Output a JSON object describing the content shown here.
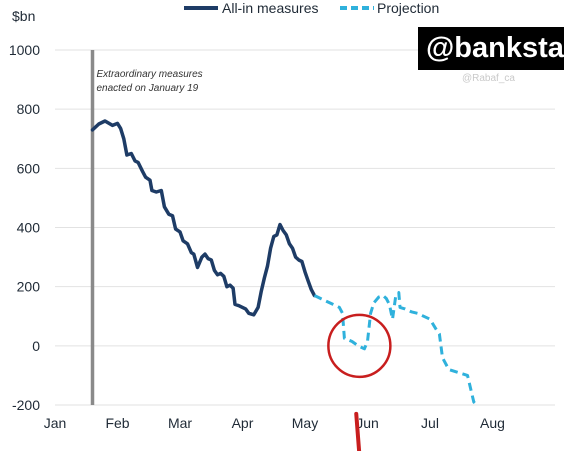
{
  "watermark": "@banksta",
  "faint_text": [
    "@Rabaf_ca"
  ],
  "chart_data": {
    "type": "line",
    "title": "",
    "ylabel": "$bn",
    "xlabel": "",
    "ylim": [
      -200,
      1000
    ],
    "yticks": [
      -200,
      0,
      200,
      400,
      600,
      800,
      1000
    ],
    "x_months": [
      "Jan",
      "Feb",
      "Mar",
      "Apr",
      "May",
      "Jun",
      "Jul",
      "Aug"
    ],
    "grid": "horizontal",
    "legend_position": "top-center",
    "annotation": {
      "line1": "Extraordinary measures",
      "line2": "enacted on January 19",
      "x_month": 0.6
    },
    "series": [
      {
        "name": "All-in measures",
        "style": "solid",
        "color": "#1e3c66",
        "points": [
          [
            0.6,
            730
          ],
          [
            0.7,
            750
          ],
          [
            0.8,
            760
          ],
          [
            0.92,
            745
          ],
          [
            1.0,
            752
          ],
          [
            1.05,
            735
          ],
          [
            1.1,
            700
          ],
          [
            1.15,
            645
          ],
          [
            1.22,
            650
          ],
          [
            1.28,
            625
          ],
          [
            1.33,
            620
          ],
          [
            1.4,
            590
          ],
          [
            1.45,
            570
          ],
          [
            1.52,
            560
          ],
          [
            1.55,
            525
          ],
          [
            1.62,
            520
          ],
          [
            1.7,
            525
          ],
          [
            1.75,
            470
          ],
          [
            1.82,
            445
          ],
          [
            1.88,
            440
          ],
          [
            1.93,
            395
          ],
          [
            2.0,
            385
          ],
          [
            2.05,
            355
          ],
          [
            2.12,
            345
          ],
          [
            2.18,
            315
          ],
          [
            2.22,
            310
          ],
          [
            2.28,
            265
          ],
          [
            2.35,
            300
          ],
          [
            2.4,
            310
          ],
          [
            2.45,
            295
          ],
          [
            2.5,
            290
          ],
          [
            2.55,
            255
          ],
          [
            2.6,
            240
          ],
          [
            2.65,
            245
          ],
          [
            2.7,
            235
          ],
          [
            2.75,
            200
          ],
          [
            2.8,
            205
          ],
          [
            2.85,
            195
          ],
          [
            2.88,
            140
          ],
          [
            2.95,
            135
          ],
          [
            3.0,
            130
          ],
          [
            3.05,
            125
          ],
          [
            3.1,
            110
          ],
          [
            3.18,
            105
          ],
          [
            3.25,
            130
          ],
          [
            3.3,
            185
          ],
          [
            3.35,
            230
          ],
          [
            3.4,
            270
          ],
          [
            3.45,
            330
          ],
          [
            3.5,
            370
          ],
          [
            3.55,
            375
          ],
          [
            3.6,
            410
          ],
          [
            3.65,
            390
          ],
          [
            3.7,
            375
          ],
          [
            3.75,
            345
          ],
          [
            3.8,
            330
          ],
          [
            3.85,
            300
          ],
          [
            3.9,
            290
          ],
          [
            3.95,
            285
          ],
          [
            4.0,
            250
          ],
          [
            4.05,
            220
          ],
          [
            4.1,
            190
          ],
          [
            4.15,
            170
          ]
        ]
      },
      {
        "name": "Projection",
        "style": "dashed",
        "color": "#2fb1dc",
        "points": [
          [
            4.15,
            170
          ],
          [
            4.25,
            160
          ],
          [
            4.35,
            150
          ],
          [
            4.45,
            140
          ],
          [
            4.55,
            130
          ],
          [
            4.6,
            110
          ],
          [
            4.63,
            25
          ],
          [
            4.75,
            15
          ],
          [
            4.85,
            0
          ],
          [
            4.95,
            -10
          ],
          [
            5.0,
            15
          ],
          [
            5.05,
            110
          ],
          [
            5.1,
            145
          ],
          [
            5.18,
            165
          ],
          [
            5.25,
            170
          ],
          [
            5.3,
            160
          ],
          [
            5.35,
            140
          ],
          [
            5.4,
            90
          ],
          [
            5.45,
            165
          ],
          [
            5.5,
            180
          ],
          [
            5.52,
            130
          ],
          [
            5.6,
            125
          ],
          [
            5.7,
            115
          ],
          [
            5.8,
            110
          ],
          [
            5.9,
            100
          ],
          [
            6.0,
            90
          ],
          [
            6.1,
            55
          ],
          [
            6.15,
            40
          ],
          [
            6.2,
            -40
          ],
          [
            6.3,
            -80
          ],
          [
            6.45,
            -90
          ],
          [
            6.6,
            -100
          ],
          [
            6.7,
            -190
          ],
          [
            6.75,
            -200
          ]
        ]
      }
    ],
    "overlays": [
      {
        "type": "circle",
        "color": "#c81e1e",
        "center_month": 4.87,
        "center_value": 0
      },
      {
        "type": "line",
        "color": "#c81e1e",
        "from_month": 4.82,
        "from_value": -230,
        "to_month": 4.87,
        "to_value": -300
      }
    ]
  }
}
